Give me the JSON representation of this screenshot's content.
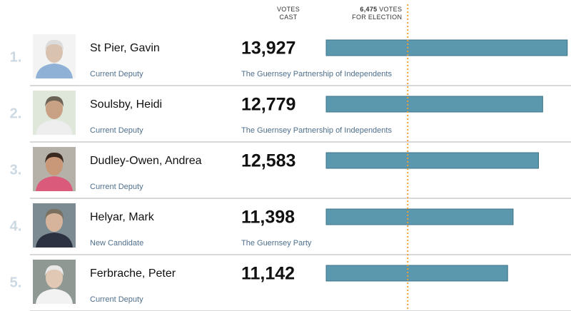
{
  "chart_data": {
    "type": "bar",
    "orientation": "horizontal",
    "column_header": "VOTES CAST",
    "categories": [
      "St Pier, Gavin",
      "Soulsby, Heidi",
      "Dudley-Owen, Andrea",
      "Helyar, Mark",
      "Ferbrache, Peter"
    ],
    "ranks": [
      "1.",
      "2.",
      "3.",
      "4.",
      "5."
    ],
    "statuses": [
      "Current Deputy",
      "Current Deputy",
      "Current Deputy",
      "New Candidate",
      "Current Deputy"
    ],
    "parties": [
      "The Guernsey Partnership of Independents",
      "The Guernsey Partnership of Independents",
      null,
      "The Guernsey Party",
      null
    ],
    "values": [
      13927,
      12779,
      12583,
      11398,
      11142
    ],
    "value_labels": [
      "13,927",
      "12,779",
      "12,583",
      "11,398",
      "11,142"
    ],
    "color": "#5b98ae",
    "threshold": {
      "value": 6475,
      "label": "6,475",
      "text": "VOTES FOR ELECTION",
      "color": "#f0a030"
    },
    "xlim": [
      0,
      14000
    ]
  }
}
